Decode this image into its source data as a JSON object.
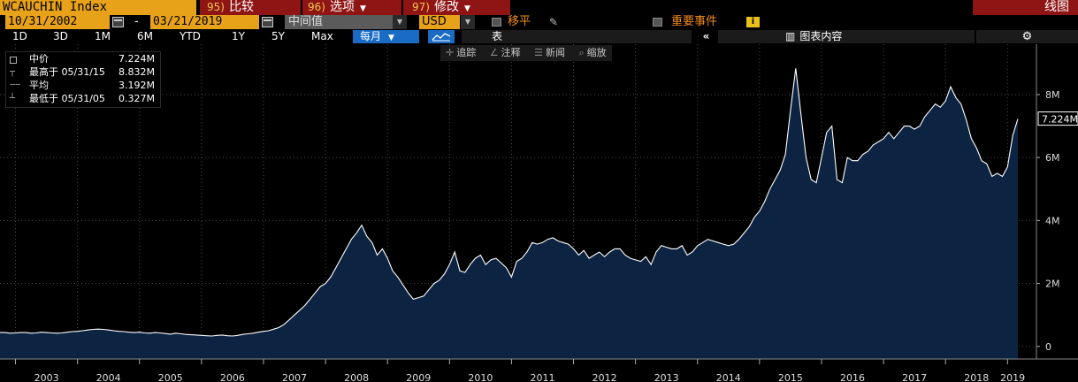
{
  "header": {
    "ticker": "WCAUCHIN Index",
    "compare": {
      "num": "95)",
      "label": "比较"
    },
    "options": {
      "num": "96)",
      "label": "选项"
    },
    "modify": {
      "num": "97)",
      "label": "修改"
    },
    "chart_label": "线图"
  },
  "controls": {
    "start_date": "10/31/2002",
    "end_date": "03/21/2019",
    "field": "中间值",
    "currency": "USD",
    "move_label": "移平",
    "events_label": "重要事件",
    "info_icon": "i",
    "ranges": [
      "1D",
      "3D",
      "1M",
      "6M",
      "YTD",
      "1Y",
      "5Y",
      "Max"
    ],
    "frequency": "每月",
    "table_label": "表",
    "contents_label": "图表内容",
    "settings_icon": "gear-icon"
  },
  "tools": {
    "track": "追踪",
    "annotate": "注释",
    "news": "新闻",
    "zoom": "缩放"
  },
  "legend": {
    "title": "中价",
    "title_value": "7.224M",
    "high_label": "最高于 05/31/15",
    "high_value": "8.832M",
    "avg_label": "平均",
    "avg_value": "3.192M",
    "low_label": "最低于 05/31/05",
    "low_value": "0.327M"
  },
  "colors": {
    "accent_orange": "#e8a21a",
    "button_red": "#8f1414",
    "selected_blue": "#1a6bc4",
    "area_fill": "#0c2342",
    "line": "#ffffff"
  },
  "chart_data": {
    "type": "area",
    "series": [
      {
        "values": [
          0.44,
          0.44,
          0.42,
          0.43,
          0.44,
          0.44,
          0.42,
          0.43,
          0.45,
          0.44,
          0.43,
          0.42,
          0.43,
          0.45,
          0.47,
          0.48,
          0.5,
          0.52,
          0.54,
          0.55,
          0.54,
          0.52,
          0.5,
          0.48,
          0.47,
          0.45,
          0.44,
          0.45,
          0.43,
          0.42,
          0.44,
          0.43,
          0.41,
          0.39,
          0.42,
          0.4,
          0.38,
          0.37,
          0.36,
          0.35,
          0.34,
          0.33,
          0.35,
          0.36,
          0.34,
          0.33,
          0.35,
          0.38,
          0.4,
          0.42,
          0.45,
          0.48,
          0.5,
          0.55,
          0.6,
          0.7,
          0.85,
          1.0,
          1.15,
          1.3,
          1.5,
          1.7,
          1.9,
          2.0,
          2.2,
          2.5,
          2.8,
          3.1,
          3.4,
          3.6,
          3.85,
          3.5,
          3.3,
          2.9,
          3.1,
          2.8,
          2.4,
          2.2,
          1.95,
          1.7,
          1.5,
          1.55,
          1.6,
          1.8,
          2.0,
          2.1,
          2.3,
          2.6,
          3.0,
          2.4,
          2.35,
          2.6,
          2.8,
          2.9,
          2.6,
          2.75,
          2.8,
          2.65,
          2.5,
          2.2,
          2.7,
          2.8,
          3.0,
          3.3,
          3.25,
          3.3,
          3.4,
          3.45,
          3.35,
          3.3,
          3.25,
          3.1,
          2.9,
          3.05,
          2.8,
          2.9,
          3.0,
          2.85,
          3.0,
          3.1,
          3.1,
          2.9,
          2.8,
          2.75,
          2.7,
          2.85,
          2.6,
          3.0,
          3.2,
          3.15,
          3.1,
          3.1,
          3.2,
          2.9,
          3.0,
          3.2,
          3.3,
          3.4,
          3.35,
          3.3,
          3.25,
          3.2,
          3.25,
          3.4,
          3.6,
          3.8,
          4.1,
          4.3,
          4.6,
          5.0,
          5.3,
          5.6,
          6.1,
          7.5,
          8.832,
          7.4,
          6.0,
          5.3,
          5.2,
          6.0,
          6.8,
          7.0,
          5.3,
          5.2,
          6.0,
          5.9,
          5.9,
          6.1,
          6.2,
          6.4,
          6.5,
          6.6,
          6.8,
          6.6,
          6.8,
          7.0,
          7.0,
          6.9,
          7.0,
          7.3,
          7.5,
          7.7,
          7.6,
          7.8,
          8.25,
          7.9,
          7.7,
          7.2,
          6.6,
          6.3,
          5.9,
          5.8,
          5.4,
          5.5,
          5.4,
          5.7,
          6.7,
          7.224
        ]
      }
    ],
    "x_start": "2002-10",
    "x_end": "2019-03",
    "x_ticks": [
      "2003",
      "2004",
      "2005",
      "2006",
      "2007",
      "2008",
      "2009",
      "2010",
      "2011",
      "2012",
      "2013",
      "2014",
      "2015",
      "2016",
      "2017",
      "2018",
      "2019"
    ],
    "y_ticks": [
      "0",
      "2M",
      "4M",
      "6M",
      "8M"
    ],
    "ylim": [
      -0.4,
      9.6
    ],
    "last_value_label": "7.224M",
    "grid": true
  }
}
